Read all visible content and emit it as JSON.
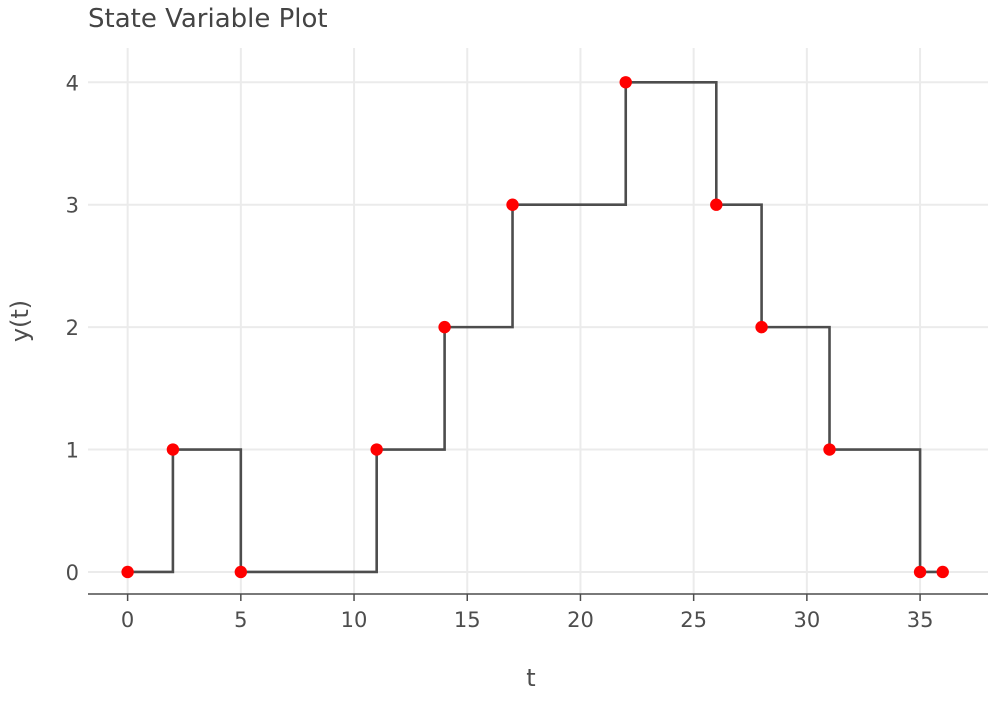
{
  "chart_data": {
    "type": "line",
    "step": true,
    "title": "State Variable Plot",
    "xlabel": "t",
    "ylabel": "y(t)",
    "xlim": [
      -1.75,
      38
    ],
    "ylim": [
      -0.18,
      4.28
    ],
    "xticks": [
      0,
      5,
      10,
      15,
      20,
      25,
      30,
      35
    ],
    "yticks": [
      0,
      1,
      2,
      3,
      4
    ],
    "grid": true,
    "series": [
      {
        "x": [
          0,
          2,
          5,
          11,
          14,
          17,
          22,
          26,
          28,
          31,
          35,
          36
        ],
        "y": [
          0,
          1,
          0,
          1,
          2,
          3,
          4,
          3,
          2,
          1,
          0,
          0
        ]
      }
    ],
    "colors": {
      "line": "#4d4d4d",
      "points": "#ff0000",
      "grid": "#ebebeb",
      "axis": "#4d4d4d",
      "text": "#4d4d4d"
    }
  }
}
